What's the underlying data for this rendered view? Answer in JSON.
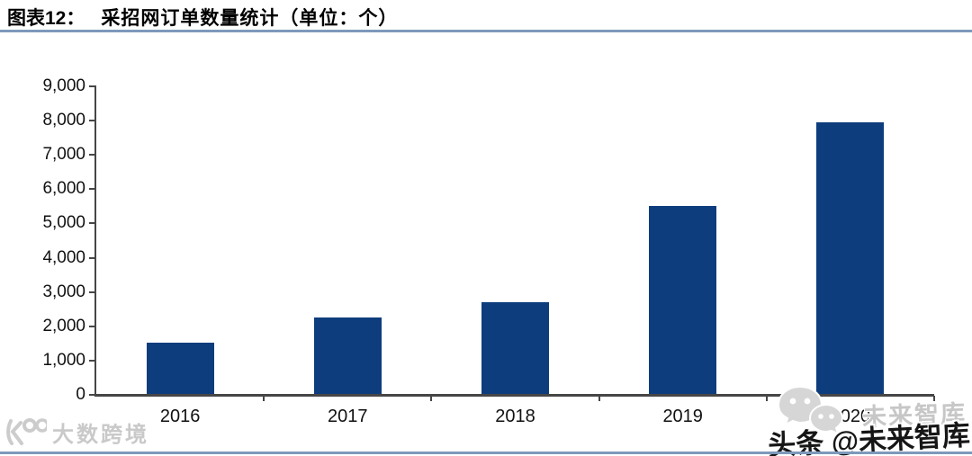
{
  "header": {
    "figure_label": "图表12：",
    "figure_title": "采招网订单数量统计（单位：个）"
  },
  "chart_data": {
    "type": "bar",
    "title": "采招网订单数量统计",
    "unit": "个",
    "categories": [
      "2016",
      "2017",
      "2018",
      "2019",
      "2020"
    ],
    "values": [
      1520,
      2250,
      2700,
      5520,
      7950
    ],
    "xlabel": "",
    "ylabel": "",
    "ylim": [
      0,
      9000
    ],
    "y_tick_step": 1000,
    "y_tick_labels": [
      "9,000",
      "8,000",
      "7,000",
      "6,000",
      "5,000",
      "4,000",
      "3,000",
      "2,000",
      "1,000",
      "0"
    ],
    "grid": false,
    "legend": false,
    "bar_color": "#0e3d7d"
  },
  "watermarks": {
    "bottom_left": {
      "icon": "dashukuajing-logo-icon",
      "text": "大数跨境"
    },
    "bottom_right": {
      "icon": "wechat-icon",
      "background_text": "未来智库",
      "overlay_text": "头条 @未来智库"
    }
  },
  "colors": {
    "bar": "#0e3d7d",
    "rule": "#7e99bb",
    "axis": "#464646"
  }
}
